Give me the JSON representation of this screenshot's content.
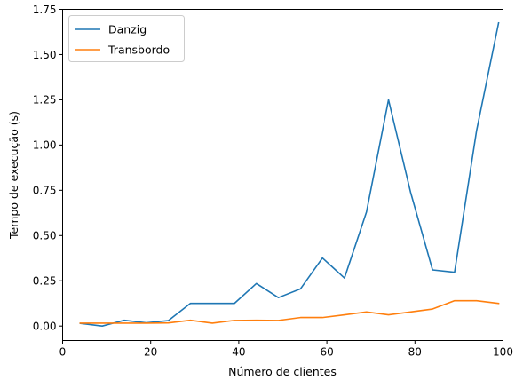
{
  "chart_data": {
    "type": "line",
    "xlabel": "Número de clientes",
    "ylabel": "Tempo de execução (s)",
    "xlim": [
      0,
      100
    ],
    "ylim": [
      -0.08,
      1.75
    ],
    "xticks": [
      0,
      20,
      40,
      60,
      80,
      100
    ],
    "yticks": [
      0.0,
      0.25,
      0.5,
      0.75,
      1.0,
      1.25,
      1.5,
      1.75
    ],
    "ytick_labels": [
      "0.00",
      "0.25",
      "0.50",
      "0.75",
      "1.00",
      "1.25",
      "1.50",
      "1.75"
    ],
    "grid": false,
    "legend_position": "top-left",
    "x": [
      4,
      9,
      14,
      19,
      24,
      29,
      34,
      39,
      44,
      49,
      54,
      59,
      64,
      69,
      74,
      79,
      84,
      89,
      94,
      99
    ],
    "series": [
      {
        "name": "Danzig",
        "color": "#1f77b4",
        "values": [
          0.015,
          0.0,
          0.032,
          0.018,
          0.03,
          0.125,
          0.125,
          0.125,
          0.235,
          0.157,
          0.205,
          0.376,
          0.265,
          0.63,
          1.25,
          0.74,
          0.31,
          0.297,
          1.08,
          1.675
        ]
      },
      {
        "name": "Transbordo",
        "color": "#ff7f0e",
        "values": [
          0.016,
          0.016,
          0.016,
          0.016,
          0.017,
          0.032,
          0.016,
          0.031,
          0.032,
          0.031,
          0.047,
          0.047,
          0.062,
          0.078,
          0.062,
          0.078,
          0.094,
          0.14,
          0.14,
          0.125
        ]
      }
    ]
  }
}
